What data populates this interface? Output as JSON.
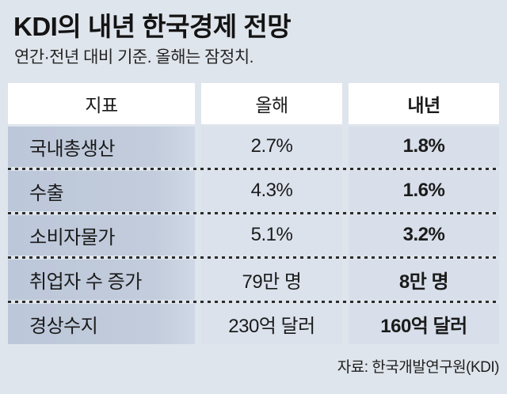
{
  "page": {
    "background_color": "#dfe5ec",
    "label_column_color": "#c2ccdc",
    "value_column_color": "#dbe2ec",
    "header_cell_color": "#ffffff",
    "divider_dot_color": "#2c2c2c"
  },
  "header": {
    "title": "KDI의 내년 한국경제 전망",
    "subtitle": "연간·전년 대비 기준. 올해는 잠정치."
  },
  "chart_data": {
    "type": "table",
    "title": "KDI의 내년 한국경제 전망",
    "subtitle": "연간·전년 대비 기준. 올해는 잠정치.",
    "columns": [
      "지표",
      "올해",
      "내년"
    ],
    "rows": [
      [
        "국내총생산",
        "2.7%",
        "1.8%"
      ],
      [
        "수출",
        "4.3%",
        "1.6%"
      ],
      [
        "소비자물가",
        "5.1%",
        "3.2%"
      ],
      [
        "취업자 수 증가",
        "79만 명",
        "8만 명"
      ],
      [
        "경상수지",
        "230억 달러",
        "160억 달러"
      ]
    ],
    "source": "자료: 한국개발연구원(KDI)"
  }
}
